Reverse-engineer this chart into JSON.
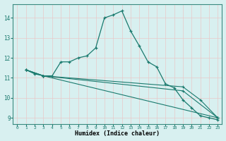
{
  "xlabel": "Humidex (Indice chaleur)",
  "background_color": "#d8f0f0",
  "grid_color": "#c8dede",
  "line_color": "#1a7a6e",
  "xlim": [
    -0.5,
    23.5
  ],
  "ylim": [
    8.7,
    14.7
  ],
  "yticks": [
    9,
    10,
    11,
    12,
    13,
    14
  ],
  "xticks": [
    0,
    1,
    2,
    3,
    4,
    5,
    6,
    7,
    8,
    9,
    10,
    11,
    12,
    13,
    14,
    15,
    16,
    17,
    18,
    19,
    20,
    21,
    22,
    23
  ],
  "lines": [
    {
      "x": [
        1,
        2,
        3,
        4,
        5,
        6,
        7,
        8,
        9,
        10,
        11,
        12,
        13,
        14,
        15,
        16,
        17,
        18,
        19,
        20,
        21,
        22,
        23
      ],
      "y": [
        11.4,
        11.2,
        11.1,
        11.1,
        11.8,
        11.8,
        12.0,
        12.1,
        12.5,
        14.0,
        14.15,
        14.35,
        13.35,
        12.6,
        11.8,
        11.55,
        10.7,
        10.5,
        9.9,
        9.5,
        9.1,
        9.0,
        8.9
      ]
    },
    {
      "x": [
        1,
        3,
        23
      ],
      "y": [
        11.4,
        11.1,
        9.0
      ]
    },
    {
      "x": [
        1,
        3,
        19,
        23
      ],
      "y": [
        11.4,
        11.1,
        10.35,
        9.0
      ]
    },
    {
      "x": [
        1,
        3,
        19,
        21,
        23
      ],
      "y": [
        11.4,
        11.1,
        10.55,
        9.9,
        9.0
      ]
    }
  ]
}
